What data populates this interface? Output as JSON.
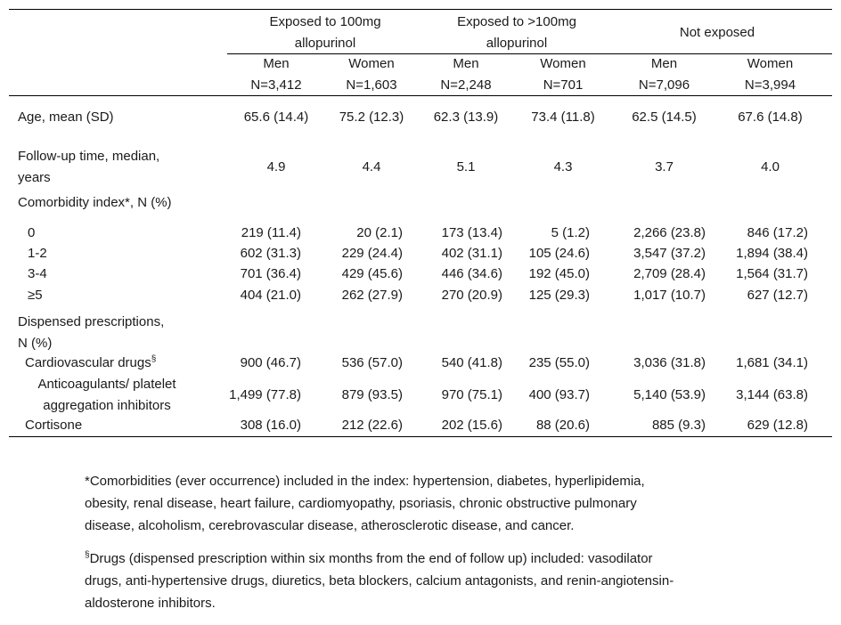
{
  "groups": [
    "Exposed to 100mg allopurinol",
    "Exposed to >100mg allopurinol",
    "Not exposed"
  ],
  "group_lines": [
    [
      "Exposed to 100mg",
      "allopurinol"
    ],
    [
      "Exposed to >100mg",
      "allopurinol"
    ],
    [
      "Not exposed"
    ]
  ],
  "subheaders": [
    {
      "sex": "Men",
      "n": "N=3,412"
    },
    {
      "sex": "Women",
      "n": "N=1,603"
    },
    {
      "sex": "Men",
      "n": "N=2,248"
    },
    {
      "sex": "Women",
      "n": "N=701"
    },
    {
      "sex": "Men",
      "n": "N=7,096"
    },
    {
      "sex": "Women",
      "n": "N=3,994"
    }
  ],
  "rows": [
    {
      "label": [
        "Age, mean (SD)"
      ],
      "values": [
        "65.6 (14.4)",
        "75.2 (12.3)",
        "62.3 (13.9)",
        "73.4 (11.8)",
        "62.5 (14.5)",
        "67.6 (14.8)"
      ]
    },
    {
      "label": [
        "Follow-up time, median,",
        "years"
      ],
      "values": [
        "4.9",
        "4.4",
        "5.1",
        "4.3",
        "3.7",
        "4.0"
      ]
    },
    {
      "label": [
        "Comorbidity index*, N (%)"
      ],
      "values": []
    },
    {
      "label": [
        "0"
      ],
      "values": [
        "219 (11.4)",
        "20 (2.1)",
        "173 (13.4)",
        "5 (1.2)",
        "2,266 (23.8)",
        "846 (17.2)"
      ]
    },
    {
      "label": [
        "1-2"
      ],
      "values": [
        "602 (31.3)",
        "229 (24.4)",
        "402 (31.1)",
        "105 (24.6)",
        "3,547 (37.2)",
        "1,894 (38.4)"
      ]
    },
    {
      "label": [
        "3-4"
      ],
      "values": [
        "701 (36.4)",
        "429 (45.6)",
        "446 (34.6)",
        "192 (45.0)",
        "2,709 (28.4)",
        "1,564 (31.7)"
      ]
    },
    {
      "label": [
        "≥5"
      ],
      "values": [
        "404 (21.0)",
        "262 (27.9)",
        "270 (20.9)",
        "125 (29.3)",
        "1,017 (10.7)",
        "627 (12.7)"
      ]
    },
    {
      "label": [
        "Dispensed prescriptions,",
        "N (%)"
      ],
      "values": []
    },
    {
      "label": [
        "Cardiovascular drugs"
      ],
      "values": [
        "900 (46.7)",
        "536 (57.0)",
        "540 (41.8)",
        "235 (55.0)",
        "3,036 (31.8)",
        "1,681 (34.1)"
      ]
    },
    {
      "label": [
        "Anticoagulants/ platelet",
        "aggregation inhibitors"
      ],
      "values": [
        "1,499 (77.8)",
        "879 (93.5)",
        "970 (75.1)",
        "400 (93.7)",
        "5,140 (53.9)",
        "3,144 (63.8)"
      ]
    },
    {
      "label": [
        "Cortisone"
      ],
      "values": [
        "308 (16.0)",
        "212 (22.6)",
        "202 (15.6)",
        "88 (20.6)",
        "885 (9.3)",
        "629 (12.8)"
      ]
    }
  ],
  "cardio_mark": "§",
  "footnotes": [
    {
      "mark": "*",
      "lines": [
        "*Comorbidities (ever occurrence) included in the index: hypertension, diabetes, hyperlipidemia,",
        "obesity, renal disease, heart failure, cardiomyopathy, psoriasis, chronic obstructive pulmonary",
        "disease, alcoholism, cerebrovascular disease, atherosclerotic disease, and cancer."
      ]
    },
    {
      "mark": "§",
      "lines": [
        "Drugs (dispensed prescription within six months from the end of follow up) included: vasodilator",
        "drugs, anti-hypertensive drugs, diuretics, beta blockers, calcium antagonists, and renin-angiotensin-",
        "aldosterone inhibitors."
      ]
    }
  ]
}
